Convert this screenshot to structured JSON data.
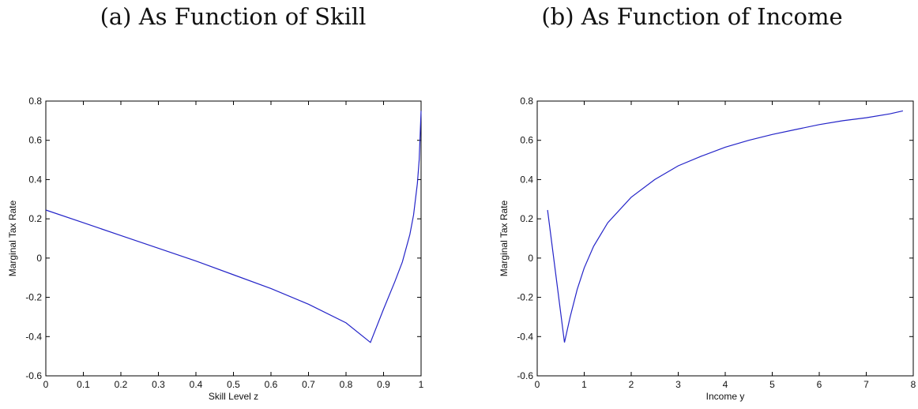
{
  "chart_data": [
    {
      "type": "line",
      "panel_title": "(a) As Function of Skill",
      "xlabel": "Skill Level z",
      "ylabel": "Marginal Tax Rate",
      "xlim": [
        0,
        1
      ],
      "ylim": [
        -0.6,
        0.8
      ],
      "xticks": [
        "0",
        "0.1",
        "0.2",
        "0.3",
        "0.4",
        "0.5",
        "0.6",
        "0.7",
        "0.8",
        "0.9",
        "1"
      ],
      "yticks": [
        "-0.6",
        "-0.4",
        "-0.2",
        "0",
        "0.2",
        "0.4",
        "0.6",
        "0.8"
      ],
      "grid": false,
      "line_color": "#2424c8",
      "series": [
        {
          "x": [
            0,
            0.1,
            0.2,
            0.3,
            0.4,
            0.5,
            0.6,
            0.7,
            0.8,
            0.865,
            0.9,
            0.93,
            0.95,
            0.97,
            0.98,
            0.99,
            0.995,
            1.0
          ],
          "y": [
            0.245,
            0.18,
            0.115,
            0.05,
            -0.015,
            -0.085,
            -0.155,
            -0.235,
            -0.33,
            -0.43,
            -0.26,
            -0.12,
            -0.02,
            0.12,
            0.22,
            0.38,
            0.5,
            0.75
          ]
        }
      ]
    },
    {
      "type": "line",
      "panel_title": "(b) As Function of Income",
      "xlabel": "Income y",
      "ylabel": "Marginal Tax Rate",
      "xlim": [
        0,
        8
      ],
      "ylim": [
        -0.6,
        0.8
      ],
      "xticks": [
        "0",
        "1",
        "2",
        "3",
        "4",
        "5",
        "6",
        "7",
        "8"
      ],
      "yticks": [
        "-0.6",
        "-0.4",
        "-0.2",
        "0",
        "0.2",
        "0.4",
        "0.6",
        "0.8"
      ],
      "grid": false,
      "line_color": "#2424c8",
      "series": [
        {
          "x": [
            0.22,
            0.58,
            0.7,
            0.85,
            1.0,
            1.2,
            1.5,
            2.0,
            2.5,
            3.0,
            3.5,
            4.0,
            4.5,
            5.0,
            5.5,
            6.0,
            6.5,
            7.0,
            7.5,
            7.78
          ],
          "y": [
            0.245,
            -0.43,
            -0.3,
            -0.16,
            -0.05,
            0.06,
            0.18,
            0.31,
            0.4,
            0.47,
            0.52,
            0.565,
            0.6,
            0.63,
            0.655,
            0.68,
            0.7,
            0.715,
            0.735,
            0.75
          ]
        }
      ]
    }
  ]
}
